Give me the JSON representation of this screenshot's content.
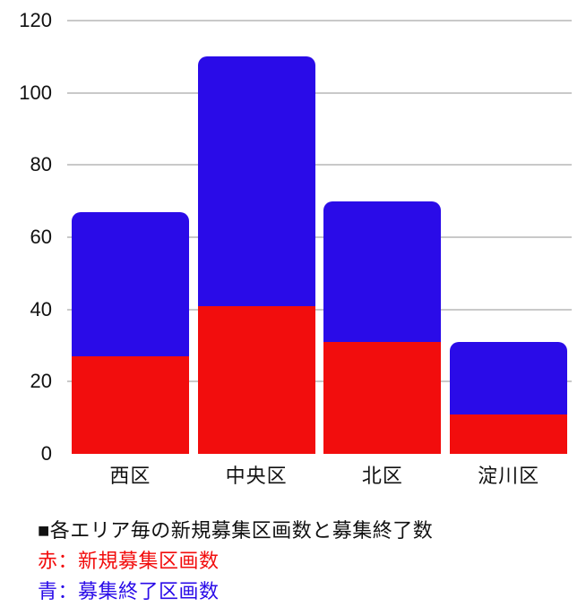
{
  "chart_data": {
    "type": "bar",
    "stacked": true,
    "title": "各エリア毎の新規募集区画数と募集終了数",
    "categories": [
      "西区",
      "中央区",
      "北区",
      "淀川区"
    ],
    "series": [
      {
        "name": "新規募集区画数",
        "legend_key": "赤",
        "color": "#F20D0D",
        "values": [
          27,
          41,
          31,
          11
        ]
      },
      {
        "name": "募集終了区画数",
        "legend_key": "青",
        "color": "#2A0BE8",
        "values": [
          40,
          69,
          39,
          20
        ]
      }
    ],
    "y_ticks": [
      0,
      20,
      40,
      60,
      80,
      100,
      120
    ],
    "ylim": [
      0,
      120
    ],
    "xlabel": "",
    "ylabel": "",
    "grid": true,
    "legend_position": "below-chart-left"
  },
  "caption": {
    "title": "■各エリア毎の新規募集区画数と募集終了数",
    "legend_red": "赤：新規募集区画数",
    "legend_blue": "青：募集終了区画数"
  },
  "colors": {
    "red": "#F20D0D",
    "blue": "#2A0BE8",
    "grid": "#C9C9C9",
    "text": "#111111",
    "title_text": "#111111"
  }
}
